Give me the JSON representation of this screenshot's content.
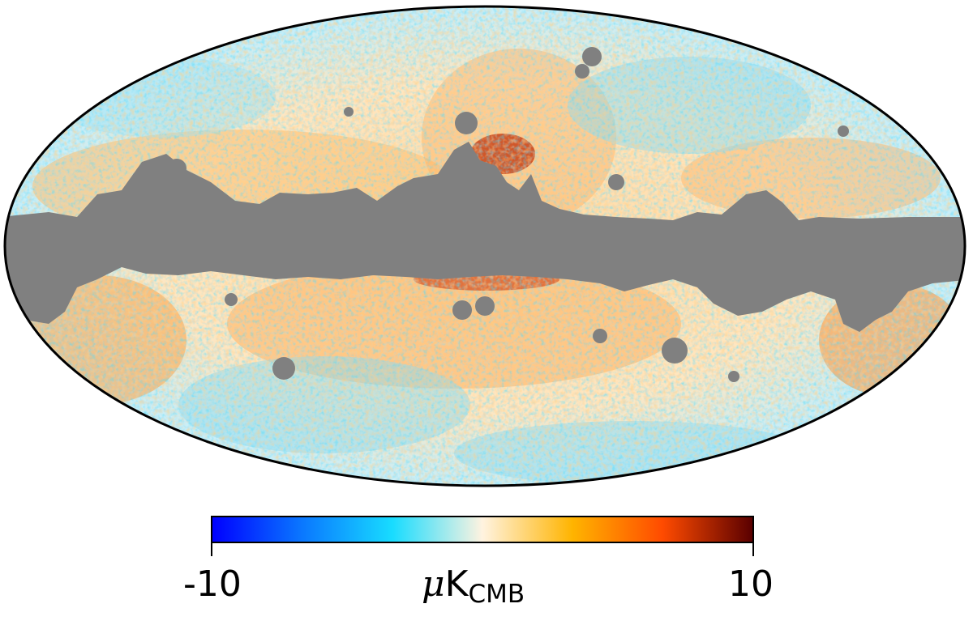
{
  "map": {
    "projection": "mollweide",
    "mask_color": "#808080",
    "outline_color": "#000000"
  },
  "colorbar": {
    "min_label": "-10",
    "max_label": "10",
    "unit_prefix": "μ",
    "unit_main": "K",
    "unit_sub": "CMB",
    "colormap": [
      "#0000ff",
      "#0a78ff",
      "#18dcff",
      "#fff3e0",
      "#ffb400",
      "#ff4b00",
      "#5a0000"
    ]
  }
}
